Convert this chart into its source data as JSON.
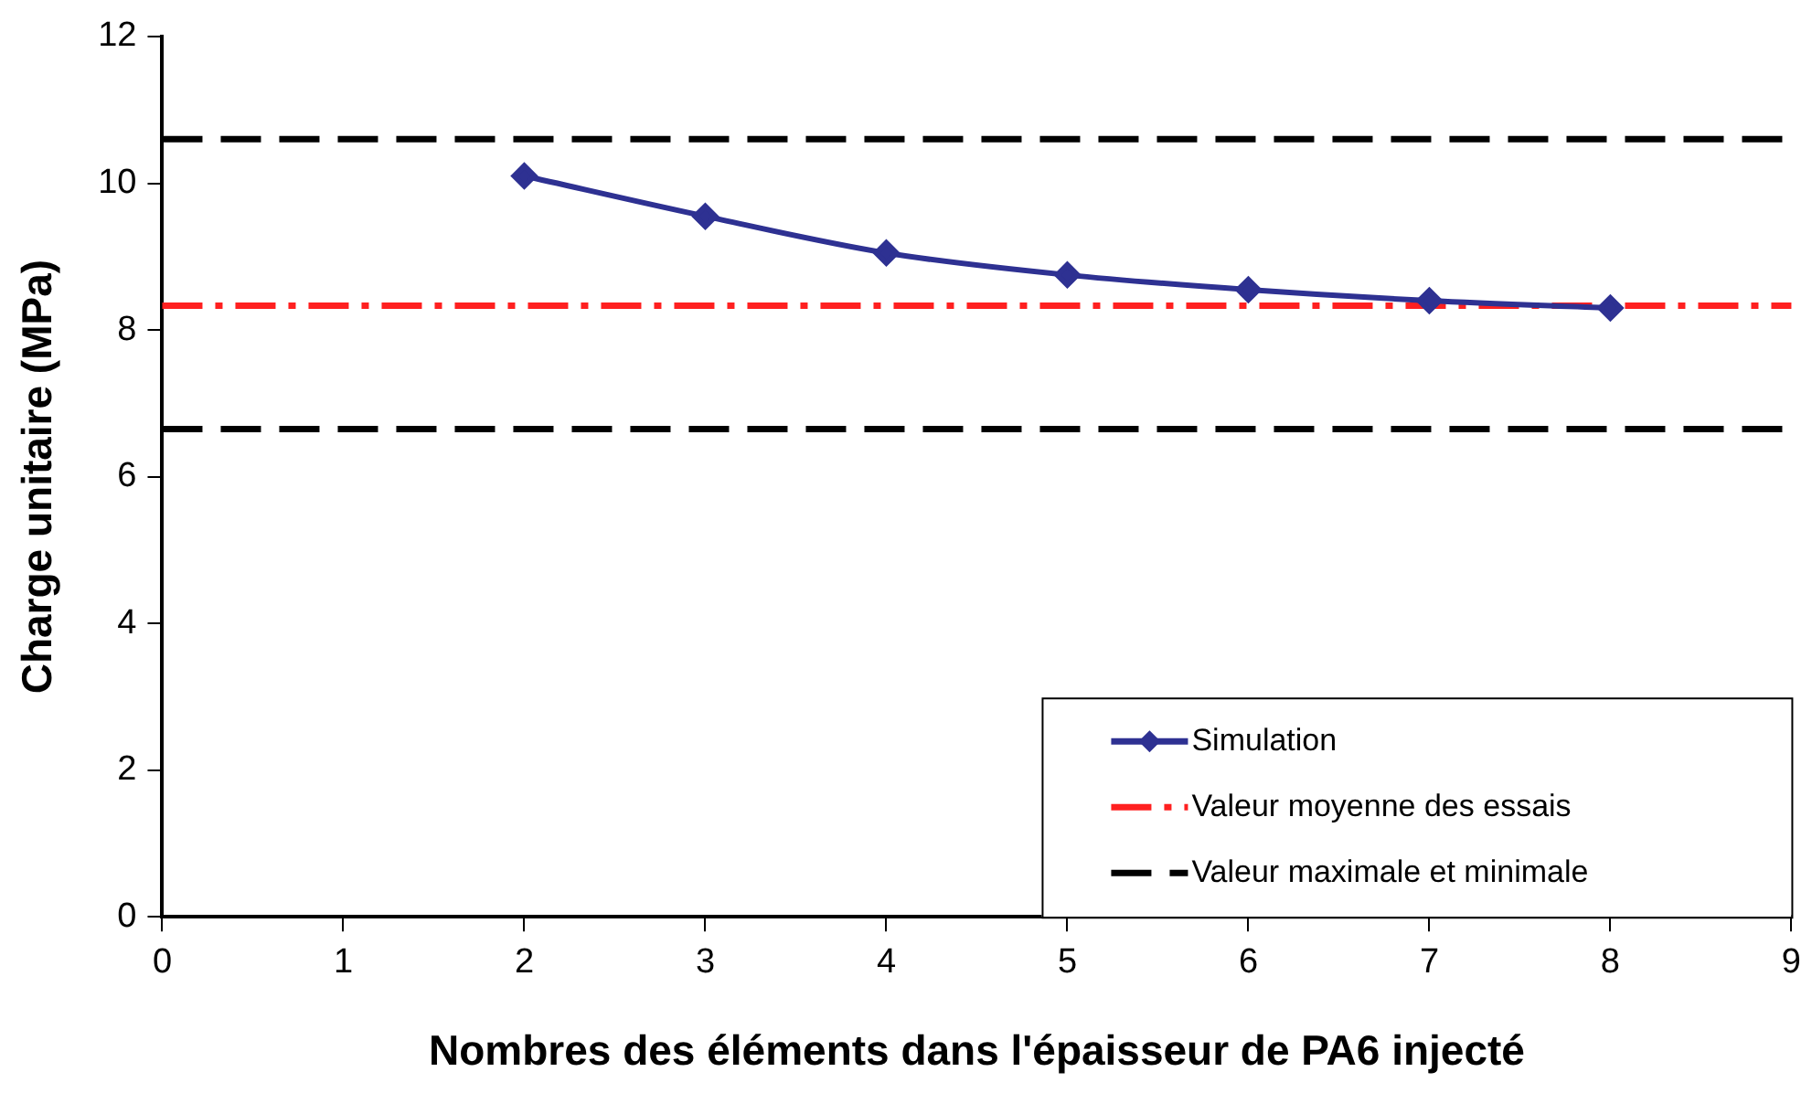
{
  "chart_data": {
    "type": "line",
    "xlabel": "Nombres des éléments dans l'épaisseur de PA6 injecté",
    "ylabel": "Charge unitaire (MPa)",
    "xlim": [
      0,
      9
    ],
    "xticks": [
      0,
      1,
      2,
      3,
      4,
      5,
      6,
      7,
      8,
      9
    ],
    "ylim": [
      0,
      12
    ],
    "yticks": [
      0,
      2,
      4,
      6,
      8,
      10,
      12
    ],
    "series": [
      {
        "name": "Simulation",
        "color": "#2e3192",
        "x": [
          2,
          3,
          4,
          5,
          6,
          7,
          8
        ],
        "values": [
          10.1,
          9.55,
          9.05,
          8.75,
          8.55,
          8.4,
          8.3
        ]
      }
    ],
    "ref_lines": [
      {
        "axis": "y",
        "value": 8.33,
        "label": "Valeur moyenne des essais",
        "color": "#ff2020",
        "line_style": "dashdot"
      },
      {
        "axis": "y",
        "value": 10.6,
        "label": "Valeur maximale et minimale",
        "color": "#000000",
        "line_style": "dashed"
      },
      {
        "axis": "y",
        "value": 6.65,
        "color": "#000000",
        "line_style": "dashed"
      }
    ],
    "marker": "diamond",
    "line_style": "solid",
    "grid": false,
    "legend": "bottom right"
  }
}
